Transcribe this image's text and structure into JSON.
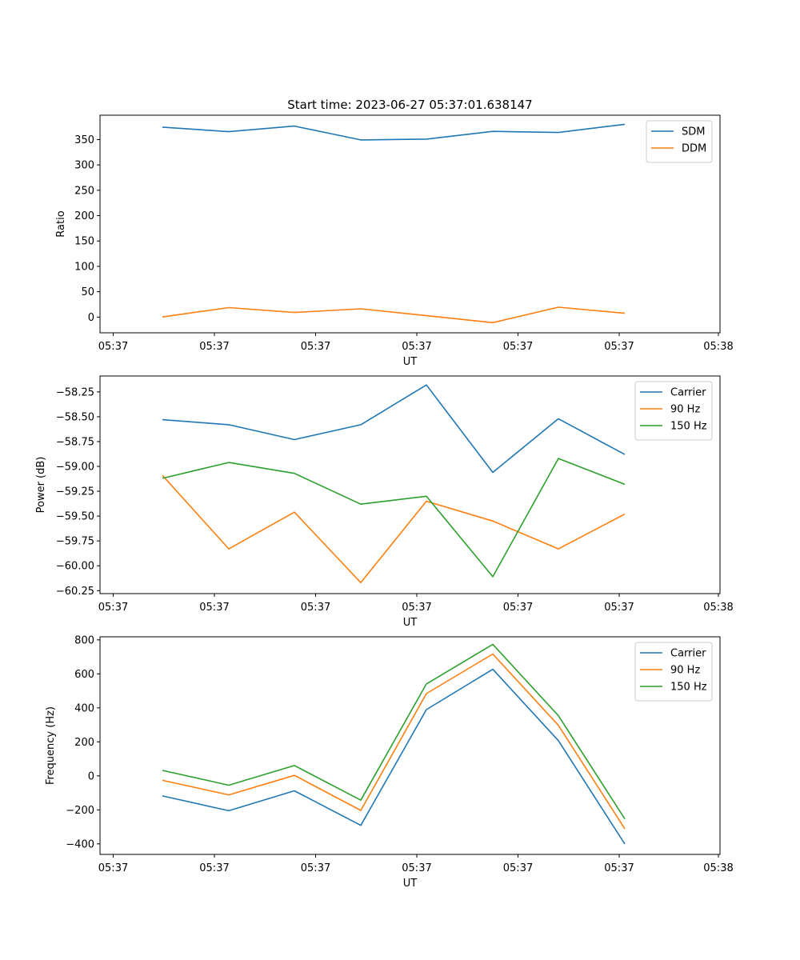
{
  "title": "Start time: 2023-06-27 05:37:01.638147",
  "chart_data": [
    {
      "type": "line",
      "xlabel": "UT",
      "ylabel": "Ratio",
      "x_ticks": [
        "05:37",
        "05:37",
        "05:37",
        "05:37",
        "05:37",
        "05:37",
        "05:38"
      ],
      "ylim": [
        -31,
        398
      ],
      "y_ticks": [
        0,
        50,
        100,
        150,
        200,
        250,
        300,
        350
      ],
      "legend": "top-right",
      "series": [
        {
          "name": "SDM",
          "color": "#1f77b4",
          "values": [
            374.5,
            365.5,
            376.5,
            349.3,
            350.8,
            366.1,
            363.9,
            380.0
          ]
        },
        {
          "name": "DDM",
          "color": "#ff7f0e",
          "values": [
            0.3,
            18.7,
            9.0,
            16.3,
            2.8,
            -10.9,
            19.4,
            7.5
          ]
        }
      ]
    },
    {
      "type": "line",
      "xlabel": "UT",
      "ylabel": "Power (dB)",
      "x_ticks": [
        "05:37",
        "05:37",
        "05:37",
        "05:37",
        "05:37",
        "05:37",
        "05:38"
      ],
      "ylim": [
        -60.28,
        -58.09
      ],
      "y_ticks": [
        -58.25,
        -58.5,
        -58.75,
        -59.0,
        -59.25,
        -59.5,
        -59.75,
        -60.0,
        -60.25
      ],
      "y_tick_labels": [
        "−58.25",
        "−58.50",
        "−58.75",
        "−59.00",
        "−59.25",
        "−59.50",
        "−59.75",
        "−60.00",
        "−60.25"
      ],
      "legend": "top-right",
      "series": [
        {
          "name": "Carrier",
          "color": "#1f77b4",
          "values": [
            -58.53,
            -58.58,
            -58.73,
            -58.58,
            -58.18,
            -59.06,
            -58.52,
            -58.88
          ]
        },
        {
          "name": "90 Hz",
          "color": "#ff7f0e",
          "values": [
            -59.09,
            -59.83,
            -59.46,
            -60.17,
            -59.35,
            -59.55,
            -59.83,
            -59.48
          ]
        },
        {
          "name": "150 Hz",
          "color": "#2ca02c",
          "values": [
            -59.12,
            -58.96,
            -59.07,
            -59.38,
            -59.3,
            -60.11,
            -58.92,
            -59.18
          ]
        }
      ]
    },
    {
      "type": "line",
      "xlabel": "UT",
      "ylabel": "Frequency (Hz)",
      "x_ticks": [
        "05:37",
        "05:37",
        "05:37",
        "05:37",
        "05:37",
        "05:37",
        "05:38"
      ],
      "ylim": [
        -462,
        818
      ],
      "y_ticks": [
        -400,
        -200,
        0,
        200,
        400,
        600,
        800
      ],
      "y_tick_labels": [
        "−400",
        "−200",
        "0",
        "200",
        "400",
        "600",
        "800"
      ],
      "legend": "top-right",
      "series": [
        {
          "name": "Carrier",
          "color": "#1f77b4",
          "values": [
            -118,
            -205,
            -88,
            -291,
            390,
            627,
            207,
            -401
          ]
        },
        {
          "name": "90 Hz",
          "color": "#ff7f0e",
          "values": [
            -26,
            -112,
            3,
            -203,
            484,
            717,
            297,
            -311
          ]
        },
        {
          "name": "150 Hz",
          "color": "#2ca02c",
          "values": [
            32,
            -55,
            61,
            -143,
            541,
            774,
            354,
            -253
          ]
        }
      ]
    }
  ]
}
